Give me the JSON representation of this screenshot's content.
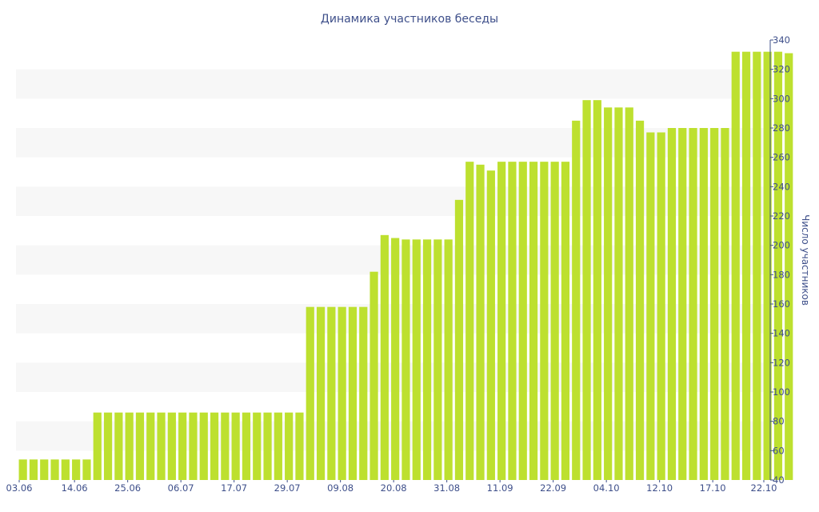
{
  "chart_data": {
    "type": "bar",
    "title": "Динамика участников беседы",
    "xlabel": "",
    "ylabel": "Число участников",
    "y_axis_side": "right",
    "ylim": [
      40,
      340
    ],
    "y_ticks": [
      40,
      60,
      80,
      100,
      120,
      140,
      160,
      180,
      200,
      220,
      240,
      260,
      280,
      300,
      320,
      340
    ],
    "x_tick_labels": [
      "03.06",
      "14.06",
      "25.06",
      "06.07",
      "17.07",
      "29.07",
      "09.08",
      "20.08",
      "31.08",
      "11.09",
      "22.09",
      "04.10",
      "12.10",
      "17.10",
      "22.10"
    ],
    "x_tick_positions": [
      0,
      5.5,
      10.5,
      15.5,
      20.5,
      25.5,
      30.5,
      35.5,
      40.5,
      45.5,
      50.5,
      55.5,
      60.5,
      65.5,
      70.5
    ],
    "grid": "alternating horizontal bands",
    "color": "#bde02f",
    "values": [
      54,
      54,
      54,
      54,
      54,
      54,
      54,
      86,
      86,
      86,
      86,
      86,
      86,
      86,
      86,
      86,
      86,
      86,
      86,
      86,
      86,
      86,
      86,
      86,
      86,
      86,
      86,
      158,
      158,
      158,
      158,
      158,
      158,
      182,
      207,
      205,
      204,
      204,
      204,
      204,
      204,
      231,
      257,
      255,
      251,
      257,
      257,
      257,
      257,
      257,
      257,
      257,
      285,
      299,
      299,
      294,
      294,
      294,
      285,
      277,
      277,
      280,
      280,
      280,
      280,
      280,
      280,
      332,
      332,
      332,
      332,
      332,
      331
    ]
  }
}
